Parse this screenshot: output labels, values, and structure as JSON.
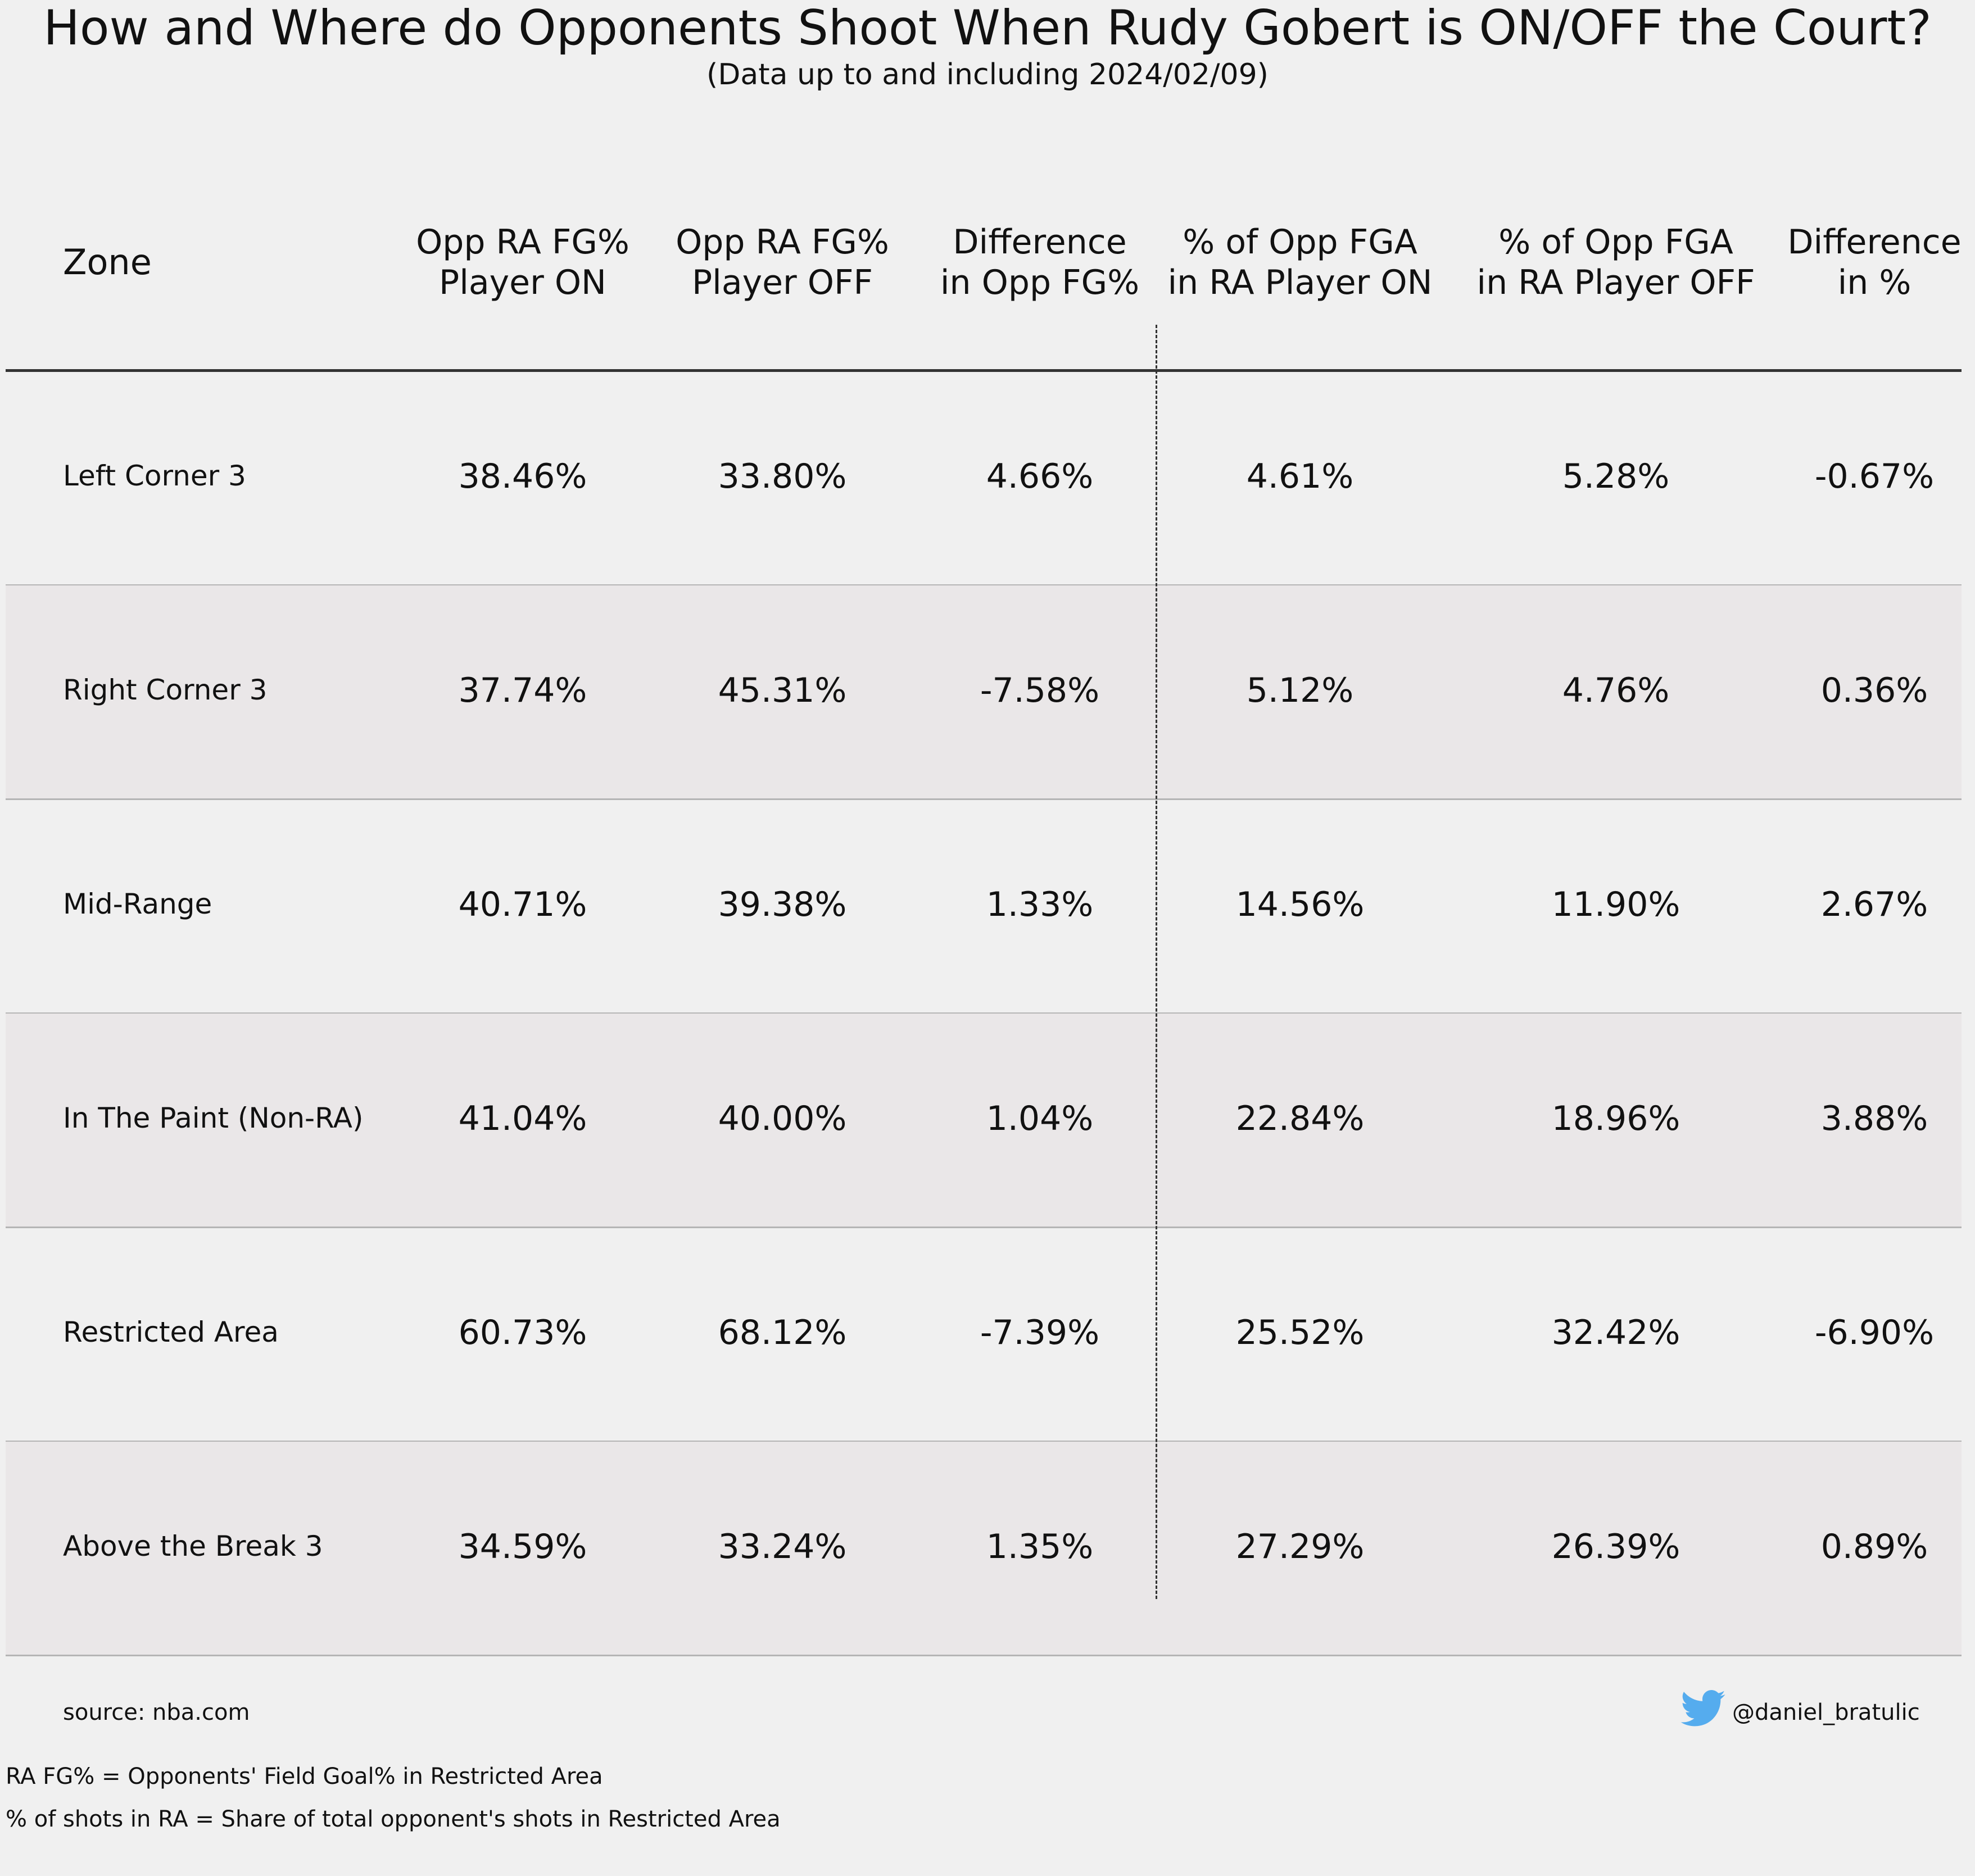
{
  "chart_data": {
    "type": "table",
    "title": "How and Where do Opponents Shoot When Rudy Gobert is ON/OFF the Court?",
    "subtitle": "(Data up to and including 2024/02/09)",
    "columns": [
      {
        "label": [
          "Zone"
        ]
      },
      {
        "label": [
          "Opp RA FG%",
          "Player ON"
        ]
      },
      {
        "label": [
          "Opp RA FG%",
          "Player OFF"
        ]
      },
      {
        "label": [
          "Difference",
          "in Opp FG%"
        ]
      },
      {
        "label": [
          "% of Opp FGA",
          "in RA Player ON"
        ]
      },
      {
        "label": [
          "% of Opp FGA",
          "in RA Player OFF"
        ]
      },
      {
        "label": [
          "Difference",
          "in %"
        ]
      }
    ],
    "rows": [
      {
        "zone": "Left Corner 3",
        "values": [
          "38.46%",
          "33.80%",
          "4.66%",
          "4.61%",
          "5.28%",
          "-0.67%"
        ]
      },
      {
        "zone": "Right Corner 3",
        "values": [
          "37.74%",
          "45.31%",
          "-7.58%",
          "5.12%",
          "4.76%",
          "0.36%"
        ]
      },
      {
        "zone": "Mid-Range",
        "values": [
          "40.71%",
          "39.38%",
          "1.33%",
          "14.56%",
          "11.90%",
          "2.67%"
        ]
      },
      {
        "zone": "In The Paint (Non-RA)",
        "values": [
          "41.04%",
          "40.00%",
          "1.04%",
          "22.84%",
          "18.96%",
          "3.88%"
        ]
      },
      {
        "zone": "Restricted Area",
        "values": [
          "60.73%",
          "68.12%",
          "-7.39%",
          "25.52%",
          "32.42%",
          "-6.90%"
        ]
      },
      {
        "zone": "Above the Break 3",
        "values": [
          "34.59%",
          "33.24%",
          "1.35%",
          "27.29%",
          "26.39%",
          "0.89%"
        ]
      }
    ],
    "shaded_rows": [
      false,
      true,
      false,
      true,
      false,
      true
    ]
  },
  "footer": {
    "source": "source: nba.com",
    "handle": "@daniel_bratulic",
    "note1": "RA FG% = Opponents' Field Goal% in Restricted Area",
    "note2": "% of shots in RA = Share of total opponent's shots in Restricted Area",
    "icon": "twitter-bird-icon",
    "icon_color": "#55acee"
  },
  "colors": {
    "background": "#f0f0f0",
    "shaded_row": "#eae7e8",
    "header_rule": "#333333",
    "row_line": "#b5b5b5"
  }
}
